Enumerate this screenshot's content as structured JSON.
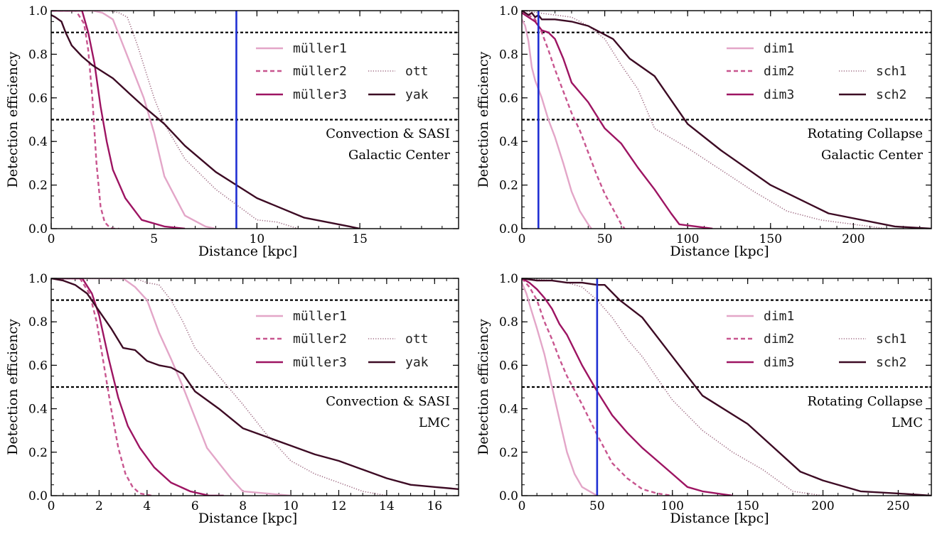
{
  "colors": {
    "line1": "#e3a6c8",
    "line2": "#c8558f",
    "line3": "#9d1462",
    "line4": "#9e6a82",
    "line5": "#3d0b24",
    "marker": "#1f2fd3",
    "threshold": "#000000"
  },
  "chart_data": [
    {
      "type": "line",
      "panel": "top-left",
      "xlabel": "Distance [kpc]",
      "ylabel": "Detection efficiency",
      "xlim": [
        0,
        19.8
      ],
      "ylim": [
        0,
        1.0
      ],
      "xticks": [
        0,
        5,
        10,
        15
      ],
      "xtick_labels": [
        "0",
        "5",
        "10",
        "15"
      ],
      "yticks": [
        0,
        0.2,
        0.4,
        0.6,
        0.8,
        1.0
      ],
      "ytick_labels": [
        "0.0",
        "0.2",
        "0.4",
        "0.6",
        "0.8",
        "1.0"
      ],
      "thresholds": [
        0.9,
        0.5
      ],
      "marker_x": 9,
      "annotation": [
        "Convection & SASI",
        "Galactic Center"
      ],
      "legend_position": "right",
      "series": [
        {
          "name": "müller1",
          "style": "solid",
          "color_key": "line1",
          "x": [
            0,
            2,
            2.5,
            3,
            3.5,
            4,
            4.5,
            5,
            5.5,
            6,
            6.5,
            7,
            7.5,
            8
          ],
          "y": [
            1.0,
            1.0,
            0.99,
            0.96,
            0.84,
            0.72,
            0.6,
            0.44,
            0.24,
            0.15,
            0.06,
            0.035,
            0.01,
            0.0
          ]
        },
        {
          "name": "müller2",
          "style": "dashed",
          "color_key": "line2",
          "x": [
            0,
            1.2,
            1.6,
            1.8,
            2.0,
            2.2,
            2.4,
            2.6,
            2.8,
            3.0,
            3.3
          ],
          "y": [
            1.0,
            1.0,
            0.94,
            0.82,
            0.6,
            0.3,
            0.1,
            0.03,
            0.01,
            0.0,
            0.0
          ]
        },
        {
          "name": "müller3",
          "style": "solid",
          "color_key": "line3",
          "x": [
            0,
            1.5,
            1.8,
            2.1,
            2.4,
            2.7,
            3.0,
            3.6,
            4.4,
            5.5,
            6.5
          ],
          "y": [
            1.0,
            1.0,
            0.9,
            0.76,
            0.56,
            0.4,
            0.27,
            0.14,
            0.04,
            0.01,
            0.0
          ]
        },
        {
          "name": "ott",
          "style": "dotted",
          "color_key": "line4",
          "x": [
            0,
            2.8,
            3.3,
            3.7,
            4.2,
            5,
            5.5,
            6.5,
            8,
            9,
            10,
            11,
            12
          ],
          "y": [
            1.0,
            1.0,
            0.99,
            0.97,
            0.84,
            0.6,
            0.48,
            0.32,
            0.18,
            0.11,
            0.04,
            0.03,
            0.0
          ]
        },
        {
          "name": "yak",
          "style": "solid",
          "color_key": "line5",
          "x": [
            0,
            0.2,
            0.5,
            0.7,
            1,
            1.5,
            2,
            3,
            3.8,
            4.5,
            5.5,
            6.5,
            8,
            10,
            12.3,
            14.5,
            15
          ],
          "y": [
            0.98,
            0.97,
            0.95,
            0.9,
            0.84,
            0.79,
            0.75,
            0.69,
            0.62,
            0.56,
            0.48,
            0.38,
            0.26,
            0.14,
            0.05,
            0.01,
            0.0
          ]
        }
      ]
    },
    {
      "type": "line",
      "panel": "top-right",
      "xlabel": "Distance [kpc]",
      "ylabel": "Detection efficiency",
      "xlim": [
        0,
        247
      ],
      "ylim": [
        0,
        1.0
      ],
      "xticks": [
        0,
        50,
        100,
        150,
        200
      ],
      "xtick_labels": [
        "0",
        "50",
        "100",
        "150",
        "200"
      ],
      "yticks": [
        0,
        0.2,
        0.4,
        0.6,
        0.8,
        1.0
      ],
      "ytick_labels": [
        "0.0",
        "0.2",
        "0.4",
        "0.6",
        "0.8",
        "1.0"
      ],
      "thresholds": [
        0.9,
        0.5
      ],
      "marker_x": 10,
      "annotation": [
        "Rotating Collapse",
        "Galactic Center"
      ],
      "legend_position": "right",
      "series": [
        {
          "name": "dim1",
          "style": "solid",
          "color_key": "line1",
          "x": [
            0,
            2,
            4,
            6,
            8,
            12,
            16,
            20,
            25,
            30,
            35,
            40,
            42
          ],
          "y": [
            0.96,
            0.93,
            0.86,
            0.74,
            0.68,
            0.6,
            0.5,
            0.42,
            0.3,
            0.17,
            0.08,
            0.02,
            0.0
          ]
        },
        {
          "name": "dim2",
          "style": "dashed",
          "color_key": "line2",
          "x": [
            0,
            4,
            8,
            12,
            16,
            20,
            25,
            30,
            35,
            40,
            45,
            50,
            55,
            60,
            62
          ],
          "y": [
            1.0,
            0.98,
            0.96,
            0.9,
            0.82,
            0.73,
            0.63,
            0.53,
            0.45,
            0.35,
            0.25,
            0.16,
            0.09,
            0.02,
            0.0
          ]
        },
        {
          "name": "dim3",
          "style": "solid",
          "color_key": "line3",
          "x": [
            0,
            4,
            8,
            12,
            16,
            20,
            25,
            30,
            40,
            50,
            60,
            70,
            80,
            90,
            95,
            105,
            115
          ],
          "y": [
            0.99,
            0.97,
            0.95,
            0.91,
            0.9,
            0.87,
            0.78,
            0.67,
            0.58,
            0.46,
            0.39,
            0.28,
            0.18,
            0.07,
            0.02,
            0.01,
            0.0
          ]
        },
        {
          "name": "sch1",
          "style": "dotted",
          "color_key": "line4",
          "x": [
            0,
            10,
            20,
            30,
            40,
            50,
            60,
            70,
            80,
            100,
            120,
            140,
            160,
            180,
            200,
            220
          ],
          "y": [
            1.0,
            0.99,
            0.98,
            0.97,
            0.93,
            0.87,
            0.75,
            0.64,
            0.46,
            0.37,
            0.27,
            0.17,
            0.08,
            0.04,
            0.02,
            0.0
          ]
        },
        {
          "name": "sch2",
          "style": "solid",
          "color_key": "line5",
          "x": [
            0,
            4,
            6,
            8,
            10,
            12,
            15,
            20,
            30,
            40,
            50,
            55,
            65,
            80,
            100,
            120,
            150,
            185,
            225,
            247
          ],
          "y": [
            1.0,
            0.98,
            0.99,
            0.97,
            0.98,
            0.96,
            0.96,
            0.96,
            0.95,
            0.93,
            0.89,
            0.87,
            0.78,
            0.7,
            0.48,
            0.36,
            0.2,
            0.07,
            0.01,
            0.0
          ]
        }
      ]
    },
    {
      "type": "line",
      "panel": "bottom-left",
      "xlabel": "Distance [kpc]",
      "ylabel": "Detection efficiency",
      "xlim": [
        0,
        17
      ],
      "ylim": [
        0,
        1.0
      ],
      "xticks": [
        0,
        2,
        4,
        6,
        8,
        10,
        12,
        14,
        16
      ],
      "xtick_labels": [
        "0",
        "2",
        "4",
        "6",
        "8",
        "10",
        "12",
        "14",
        "16"
      ],
      "yticks": [
        0,
        0.2,
        0.4,
        0.6,
        0.8,
        1.0
      ],
      "ytick_labels": [
        "0.0",
        "0.2",
        "0.4",
        "0.6",
        "0.8",
        "1.0"
      ],
      "thresholds": [
        0.9,
        0.5
      ],
      "marker_x": null,
      "annotation": [
        "Convection & SASI",
        "LMC"
      ],
      "legend_position": "right",
      "series": [
        {
          "name": "müller1",
          "style": "solid",
          "color_key": "line1",
          "x": [
            0,
            3,
            3.5,
            4,
            4.5,
            5,
            5.5,
            6,
            6.5,
            7,
            7.5,
            8,
            9,
            10
          ],
          "y": [
            1.0,
            1.0,
            0.96,
            0.9,
            0.75,
            0.63,
            0.5,
            0.36,
            0.22,
            0.15,
            0.08,
            0.02,
            0.01,
            0.0
          ]
        },
        {
          "name": "müller2",
          "style": "dashed",
          "color_key": "line2",
          "x": [
            0,
            1.2,
            1.6,
            1.9,
            2.2,
            2.5,
            2.8,
            3.1,
            3.4,
            3.7,
            4.2
          ],
          "y": [
            1.0,
            1.0,
            0.93,
            0.8,
            0.6,
            0.4,
            0.22,
            0.1,
            0.04,
            0.01,
            0.0
          ]
        },
        {
          "name": "müller3",
          "style": "solid",
          "color_key": "line3",
          "x": [
            0,
            1.3,
            1.7,
            2.0,
            2.4,
            2.8,
            3.2,
            3.7,
            4.3,
            5,
            5.8,
            6.6,
            7.2
          ],
          "y": [
            1.0,
            1.0,
            0.93,
            0.83,
            0.63,
            0.45,
            0.32,
            0.22,
            0.13,
            0.06,
            0.02,
            0.0,
            0.0
          ]
        },
        {
          "name": "ott",
          "style": "dotted",
          "color_key": "line4",
          "x": [
            0,
            3.5,
            4,
            4.5,
            5,
            5.5,
            6,
            7,
            8,
            9,
            10,
            11,
            12,
            13,
            14
          ],
          "y": [
            1.0,
            1.0,
            0.98,
            0.97,
            0.9,
            0.8,
            0.68,
            0.55,
            0.42,
            0.28,
            0.16,
            0.1,
            0.06,
            0.02,
            0.0
          ]
        },
        {
          "name": "yak",
          "style": "solid",
          "color_key": "line5",
          "x": [
            0,
            0.5,
            1,
            1.5,
            2,
            2.5,
            3,
            3.5,
            4,
            4.5,
            5,
            5.5,
            6,
            7,
            8,
            9,
            10,
            11,
            12,
            13,
            14,
            15,
            16,
            17
          ],
          "y": [
            1.0,
            0.99,
            0.97,
            0.93,
            0.85,
            0.77,
            0.68,
            0.67,
            0.62,
            0.6,
            0.59,
            0.56,
            0.48,
            0.4,
            0.31,
            0.27,
            0.23,
            0.19,
            0.16,
            0.12,
            0.08,
            0.05,
            0.04,
            0.03
          ]
        }
      ]
    },
    {
      "type": "line",
      "panel": "bottom-right",
      "xlabel": "Distance [kpc]",
      "ylabel": "Detection efficiency",
      "xlim": [
        0,
        272
      ],
      "ylim": [
        0,
        1.0
      ],
      "xticks": [
        0,
        50,
        100,
        150,
        200,
        250
      ],
      "xtick_labels": [
        "0",
        "50",
        "100",
        "150",
        "200",
        "250"
      ],
      "yticks": [
        0,
        0.2,
        0.4,
        0.6,
        0.8,
        1.0
      ],
      "ytick_labels": [
        "0.0",
        "0.2",
        "0.4",
        "0.6",
        "0.8",
        "1.0"
      ],
      "thresholds": [
        0.9,
        0.5
      ],
      "marker_x": 50,
      "annotation": [
        "Rotating Collapse",
        "LMC"
      ],
      "legend_position": "right",
      "series": [
        {
          "name": "dim1",
          "style": "solid",
          "color_key": "line1",
          "x": [
            0,
            3,
            6,
            10,
            15,
            20,
            25,
            30,
            35,
            40,
            45,
            50
          ],
          "y": [
            0.98,
            0.93,
            0.86,
            0.77,
            0.65,
            0.5,
            0.35,
            0.2,
            0.1,
            0.04,
            0.02,
            0.0
          ]
        },
        {
          "name": "dim2",
          "style": "dashed",
          "color_key": "line2",
          "x": [
            0,
            5,
            10,
            15,
            20,
            25,
            30,
            40,
            50,
            60,
            70,
            80,
            90,
            100
          ],
          "y": [
            1.0,
            0.96,
            0.9,
            0.8,
            0.72,
            0.63,
            0.55,
            0.42,
            0.28,
            0.15,
            0.08,
            0.03,
            0.01,
            0.0
          ]
        },
        {
          "name": "dim3",
          "style": "solid",
          "color_key": "line3",
          "x": [
            0,
            5,
            10,
            15,
            20,
            25,
            30,
            40,
            50,
            60,
            70,
            80,
            90,
            100,
            110,
            120,
            140
          ],
          "y": [
            1.0,
            0.98,
            0.95,
            0.91,
            0.86,
            0.79,
            0.74,
            0.6,
            0.48,
            0.37,
            0.29,
            0.22,
            0.16,
            0.1,
            0.04,
            0.02,
            0.0
          ]
        },
        {
          "name": "sch1",
          "style": "dotted",
          "color_key": "line4",
          "x": [
            0,
            20,
            30,
            40,
            50,
            60,
            70,
            80,
            100,
            120,
            140,
            160,
            180,
            190,
            200,
            210
          ],
          "y": [
            1.0,
            0.99,
            0.98,
            0.96,
            0.9,
            0.82,
            0.72,
            0.64,
            0.44,
            0.3,
            0.2,
            0.12,
            0.02,
            0.01,
            0.0,
            0.0
          ]
        },
        {
          "name": "sch2",
          "style": "solid",
          "color_key": "line5",
          "x": [
            0,
            10,
            20,
            30,
            40,
            50,
            55,
            65,
            80,
            100,
            120,
            150,
            185,
            200,
            225,
            250,
            272
          ],
          "y": [
            1.0,
            0.99,
            0.99,
            0.98,
            0.98,
            0.97,
            0.97,
            0.9,
            0.82,
            0.64,
            0.46,
            0.33,
            0.11,
            0.07,
            0.02,
            0.01,
            0.0
          ]
        }
      ]
    }
  ]
}
